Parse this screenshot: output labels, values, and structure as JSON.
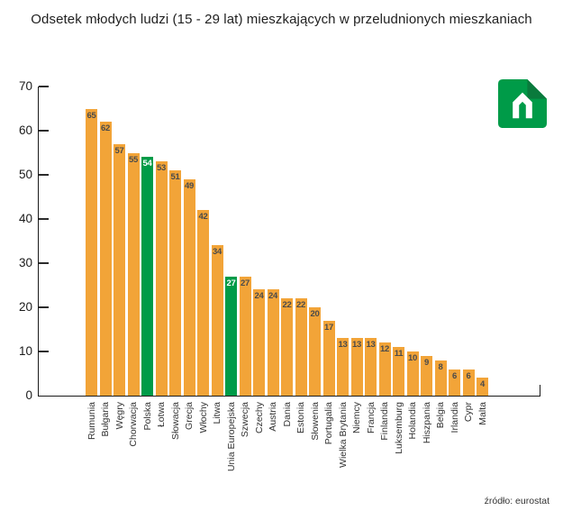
{
  "logo": {
    "icon": "house-n-logo",
    "main_color": "#009B48",
    "fold_color": "#0A7A3C",
    "glyph_color": "#FFFFFF"
  },
  "chart_data": {
    "type": "bar",
    "title": "Odsetek młodych ludzi (15 - 29 lat) mieszkających w przeludnionych mieszkaniach",
    "source": "źródło: eurostat",
    "categories": [
      "Rumunia",
      "Bułgaria",
      "Węgry",
      "Chorwacja",
      "Polska",
      "Łotwa",
      "Słowacja",
      "Grecja",
      "Włochy",
      "Litwa",
      "Unia Europejska",
      "Szwecja",
      "Czechy",
      "Austria",
      "Dania",
      "Estonia",
      "Słowenia",
      "Portugalia",
      "Wielka Brytania",
      "Niemcy",
      "Francja",
      "Finlandia",
      "Luksemburg",
      "Holandia",
      "Hiszpania",
      "Belgia",
      "Irlandia",
      "Cypr",
      "Malta"
    ],
    "values": [
      65,
      62,
      57,
      55,
      54,
      53,
      51,
      49,
      42,
      34,
      27,
      27,
      24,
      24,
      22,
      22,
      20,
      17,
      13,
      13,
      13,
      12,
      11,
      10,
      9,
      8,
      6,
      6,
      4
    ],
    "highlight_indices": [
      4,
      10
    ],
    "ylim": [
      0,
      70
    ],
    "yticks": [
      0,
      10,
      20,
      30,
      40,
      50,
      60,
      70
    ],
    "grid": "off",
    "legend": "none",
    "bar_color": "#F2A438",
    "highlight_color": "#009B48",
    "value_label_color": "#4A4A4A",
    "highlight_value_label_color": "#FFFFFF",
    "axis_color": "#1A1A1A"
  }
}
